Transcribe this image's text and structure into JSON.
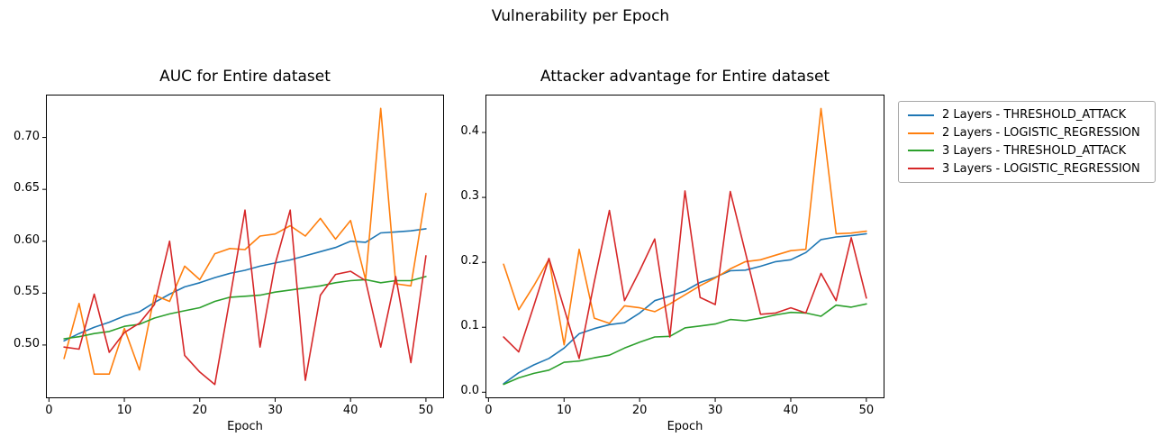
{
  "figure": {
    "title": "Vulnerability per Epoch"
  },
  "legend": {
    "items": [
      {
        "label": "2 Layers - THRESHOLD_ATTACK",
        "color": "#1f77b4"
      },
      {
        "label": "2 Layers - LOGISTIC_REGRESSION",
        "color": "#ff7f0e"
      },
      {
        "label": "3 Layers - THRESHOLD_ATTACK",
        "color": "#2ca02c"
      },
      {
        "label": "3 Layers - LOGISTIC_REGRESSION",
        "color": "#d62728"
      }
    ]
  },
  "chart_data": [
    {
      "type": "line",
      "title": "AUC for Entire dataset",
      "xlabel": "Epoch",
      "x": [
        2,
        4,
        6,
        8,
        10,
        12,
        14,
        16,
        18,
        20,
        22,
        24,
        26,
        28,
        30,
        32,
        34,
        36,
        38,
        40,
        42,
        44,
        46,
        48,
        50
      ],
      "xlim": [
        -0.4,
        52.4
      ],
      "ylim": [
        0.4487,
        0.7413
      ],
      "xticks": [
        {
          "v": 0,
          "label": "0"
        },
        {
          "v": 10,
          "label": "10"
        },
        {
          "v": 20,
          "label": "20"
        },
        {
          "v": 30,
          "label": "30"
        },
        {
          "v": 40,
          "label": "40"
        },
        {
          "v": 50,
          "label": "50"
        }
      ],
      "yticks": [
        {
          "v": 0.5,
          "label": "0.50"
        },
        {
          "v": 0.55,
          "label": "0.55"
        },
        {
          "v": 0.6,
          "label": "0.60"
        },
        {
          "v": 0.65,
          "label": "0.65"
        },
        {
          "v": 0.7,
          "label": "0.70"
        }
      ],
      "grid": false,
      "series": [
        {
          "name": "2 Layers - THRESHOLD_ATTACK",
          "color": "#1f77b4",
          "values": [
            0.504,
            0.511,
            0.517,
            0.522,
            0.528,
            0.532,
            0.541,
            0.549,
            0.556,
            0.56,
            0.565,
            0.569,
            0.572,
            0.576,
            0.579,
            0.582,
            0.586,
            0.59,
            0.594,
            0.6,
            0.599,
            0.608,
            0.609,
            0.61,
            0.612
          ]
        },
        {
          "name": "2 Layers - LOGISTIC_REGRESSION",
          "color": "#ff7f0e",
          "values": [
            0.487,
            0.54,
            0.472,
            0.472,
            0.516,
            0.476,
            0.548,
            0.542,
            0.576,
            0.563,
            0.588,
            0.593,
            0.592,
            0.605,
            0.607,
            0.615,
            0.605,
            0.622,
            0.602,
            0.62,
            0.563,
            0.728,
            0.559,
            0.557,
            0.646
          ]
        },
        {
          "name": "3 Layers - THRESHOLD_ATTACK",
          "color": "#2ca02c",
          "values": [
            0.506,
            0.508,
            0.511,
            0.513,
            0.518,
            0.52,
            0.526,
            0.53,
            0.533,
            0.536,
            0.542,
            0.546,
            0.547,
            0.548,
            0.551,
            0.553,
            0.555,
            0.557,
            0.56,
            0.562,
            0.563,
            0.56,
            0.562,
            0.562,
            0.566
          ]
        },
        {
          "name": "3 Layers - LOGISTIC_REGRESSION",
          "color": "#d62728",
          "values": [
            0.498,
            0.496,
            0.549,
            0.493,
            0.512,
            0.521,
            0.539,
            0.6,
            0.49,
            0.474,
            0.462,
            0.545,
            0.63,
            0.498,
            0.578,
            0.63,
            0.466,
            0.548,
            0.568,
            0.571,
            0.562,
            0.498,
            0.566,
            0.483,
            0.586
          ]
        }
      ]
    },
    {
      "type": "line",
      "title": "Attacker advantage for Entire dataset",
      "xlabel": "Epoch",
      "x": [
        2,
        4,
        6,
        8,
        10,
        12,
        14,
        16,
        18,
        20,
        22,
        24,
        26,
        28,
        30,
        32,
        34,
        36,
        38,
        40,
        42,
        44,
        46,
        48,
        50
      ],
      "xlim": [
        -0.4,
        52.4
      ],
      "ylim": [
        -0.0093,
        0.4583
      ],
      "xticks": [
        {
          "v": 0,
          "label": "0"
        },
        {
          "v": 10,
          "label": "10"
        },
        {
          "v": 20,
          "label": "20"
        },
        {
          "v": 30,
          "label": "30"
        },
        {
          "v": 40,
          "label": "40"
        },
        {
          "v": 50,
          "label": "50"
        }
      ],
      "yticks": [
        {
          "v": 0.0,
          "label": "0.0"
        },
        {
          "v": 0.1,
          "label": "0.1"
        },
        {
          "v": 0.2,
          "label": "0.2"
        },
        {
          "v": 0.3,
          "label": "0.3"
        },
        {
          "v": 0.4,
          "label": "0.4"
        }
      ],
      "grid": false,
      "series": [
        {
          "name": "2 Layers - THRESHOLD_ATTACK",
          "color": "#1f77b4",
          "values": [
            0.013,
            0.03,
            0.042,
            0.052,
            0.068,
            0.09,
            0.098,
            0.104,
            0.107,
            0.122,
            0.141,
            0.148,
            0.156,
            0.169,
            0.177,
            0.187,
            0.188,
            0.194,
            0.201,
            0.204,
            0.215,
            0.235,
            0.239,
            0.241,
            0.244
          ]
        },
        {
          "name": "2 Layers - LOGISTIC_REGRESSION",
          "color": "#ff7f0e",
          "values": [
            0.197,
            0.127,
            0.164,
            0.205,
            0.073,
            0.22,
            0.114,
            0.106,
            0.133,
            0.13,
            0.124,
            0.136,
            0.15,
            0.164,
            0.176,
            0.19,
            0.201,
            0.204,
            0.211,
            0.218,
            0.22,
            0.437,
            0.244,
            0.245,
            0.248
          ]
        },
        {
          "name": "3 Layers - THRESHOLD_ATTACK",
          "color": "#2ca02c",
          "values": [
            0.012,
            0.022,
            0.029,
            0.034,
            0.046,
            0.048,
            0.053,
            0.057,
            0.068,
            0.077,
            0.085,
            0.086,
            0.099,
            0.102,
            0.105,
            0.112,
            0.11,
            0.114,
            0.119,
            0.123,
            0.122,
            0.117,
            0.134,
            0.131,
            0.136
          ]
        },
        {
          "name": "3 Layers - LOGISTIC_REGRESSION",
          "color": "#d62728",
          "values": [
            0.085,
            0.062,
            0.133,
            0.206,
            0.129,
            0.052,
            0.17,
            0.28,
            0.141,
            0.187,
            0.236,
            0.085,
            0.31,
            0.146,
            0.135,
            0.309,
            0.215,
            0.12,
            0.122,
            0.13,
            0.122,
            0.183,
            0.141,
            0.238,
            0.145
          ]
        }
      ]
    }
  ]
}
